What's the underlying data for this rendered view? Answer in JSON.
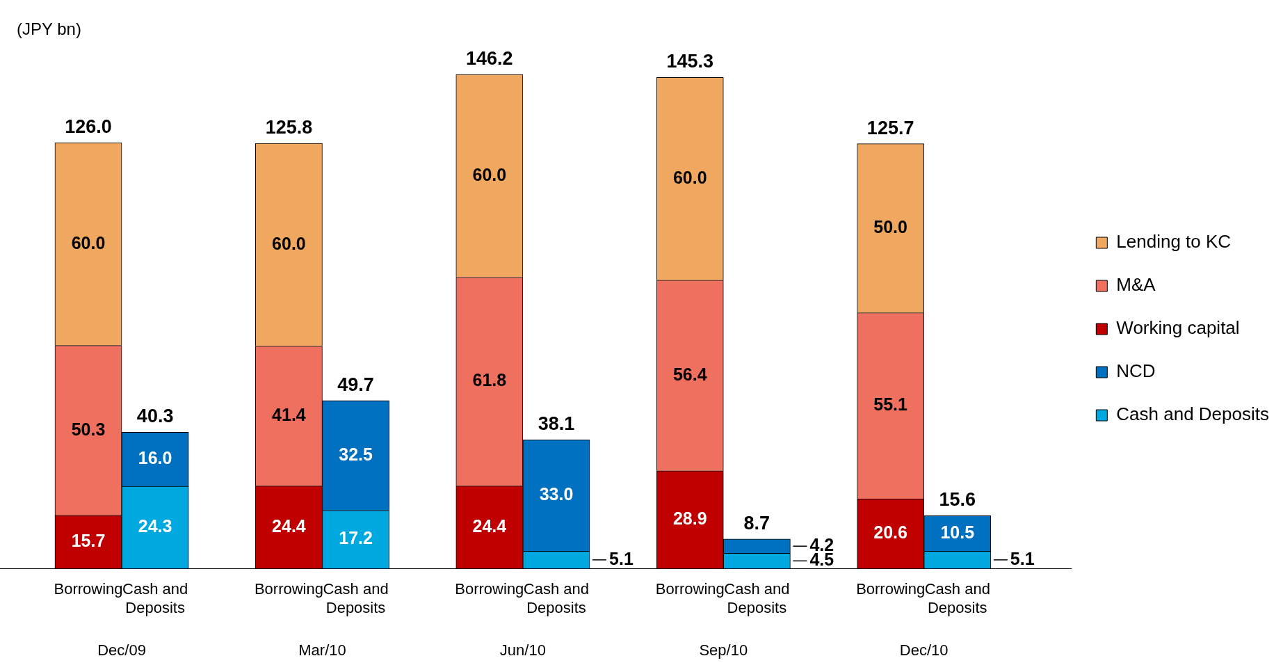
{
  "chart_data": {
    "type": "bar",
    "stacked": true,
    "ylabel": "(JPY bn)",
    "legend": "right",
    "tick_labels": "x",
    "categories": [
      "Borrowing",
      "Cash and Deposits",
      "Borrowing",
      "Cash and Deposits",
      "Borrowing",
      "Cash and Deposits",
      "Borrowing",
      "Cash and Deposits",
      "Borrowing",
      "Cash and Deposits"
    ],
    "series": [
      {
        "name": "Cash and Deposits",
        "color": "#00a8e0",
        "values": [
          null,
          24.3,
          null,
          17.2,
          null,
          5.1,
          null,
          4.5,
          null,
          5.1
        ],
        "value_labels": [
          null,
          "24.3",
          null,
          "17.2",
          null,
          "5.1",
          null,
          "4.5",
          null,
          "5.1"
        ]
      },
      {
        "name": "NCD",
        "color": "#0070c0",
        "values": [
          null,
          16.0,
          null,
          32.5,
          null,
          33.0,
          null,
          4.2,
          null,
          10.5
        ],
        "value_labels": [
          null,
          "16.0",
          null,
          "32.5",
          null,
          "33.0",
          null,
          "4.2",
          null,
          "10.5"
        ]
      },
      {
        "name": "Working capital",
        "color": "#c00000",
        "values": [
          15.7,
          null,
          24.4,
          null,
          24.4,
          null,
          28.9,
          null,
          20.6,
          null
        ],
        "value_labels": [
          "15.7",
          null,
          "24.4",
          null,
          "24.4",
          null,
          "28.9",
          null,
          "20.6",
          null
        ]
      },
      {
        "name": "M&A",
        "color": "#f07060",
        "values": [
          50.3,
          null,
          41.4,
          null,
          61.8,
          null,
          56.4,
          null,
          55.1,
          null
        ],
        "value_labels": [
          "50.3",
          null,
          "41.4",
          null,
          "61.8",
          null,
          "56.4",
          null,
          "55.1",
          null
        ]
      },
      {
        "name": "Lending to KC",
        "color": "#f0a860",
        "values": [
          60.0,
          null,
          60.0,
          null,
          60.0,
          null,
          60.0,
          null,
          50.0,
          null
        ],
        "value_labels": [
          "60.0",
          null,
          "60.0",
          null,
          "60.0",
          null,
          "60.0",
          null,
          "50.0",
          null
        ]
      }
    ],
    "totals": [
      "126.0",
      "40.3",
      "125.8",
      "49.7",
      "146.2",
      "38.1",
      "145.3",
      "8.7",
      "125.7",
      "15.6"
    ],
    "annotations": [
      "Dec/09",
      "Mar/10",
      "Jun/10",
      "Sep/10",
      "Dec/10"
    ]
  }
}
